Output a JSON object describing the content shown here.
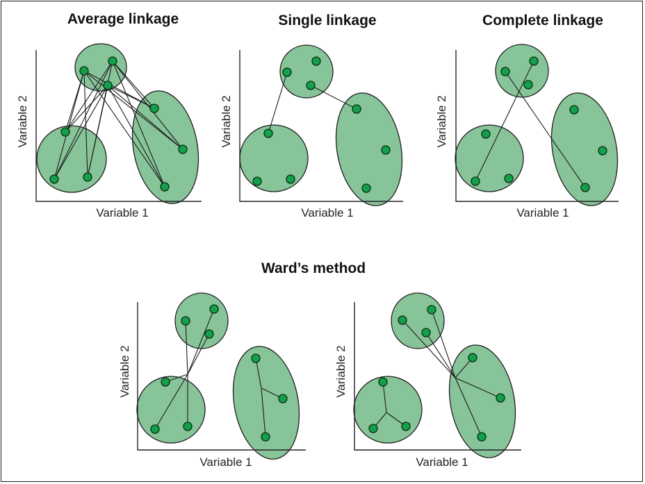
{
  "colors": {
    "cluster_fill": "#88c499",
    "cluster_stroke": "#1e1e1e",
    "point_fill": "#12a04a",
    "point_stroke": "#0b2a14",
    "line": "#1a1a1a",
    "axis": "#222222"
  },
  "section_title": "Ward’s method",
  "panels": [
    {
      "id": "average",
      "title": "Average linkage",
      "xlabel": "Variable 1",
      "ylabel": "Variable 2"
    },
    {
      "id": "single",
      "title": "Single linkage",
      "xlabel": "Variable 1",
      "ylabel": "Variable 2"
    },
    {
      "id": "complete",
      "title": "Complete linkage",
      "xlabel": "Variable 1",
      "ylabel": "Variable 2"
    },
    {
      "id": "ward-a",
      "title": "",
      "xlabel": "Variable 1",
      "ylabel": "Variable 2"
    },
    {
      "id": "ward-b",
      "title": "",
      "xlabel": "Variable 1",
      "ylabel": "Variable 2"
    }
  ]
}
